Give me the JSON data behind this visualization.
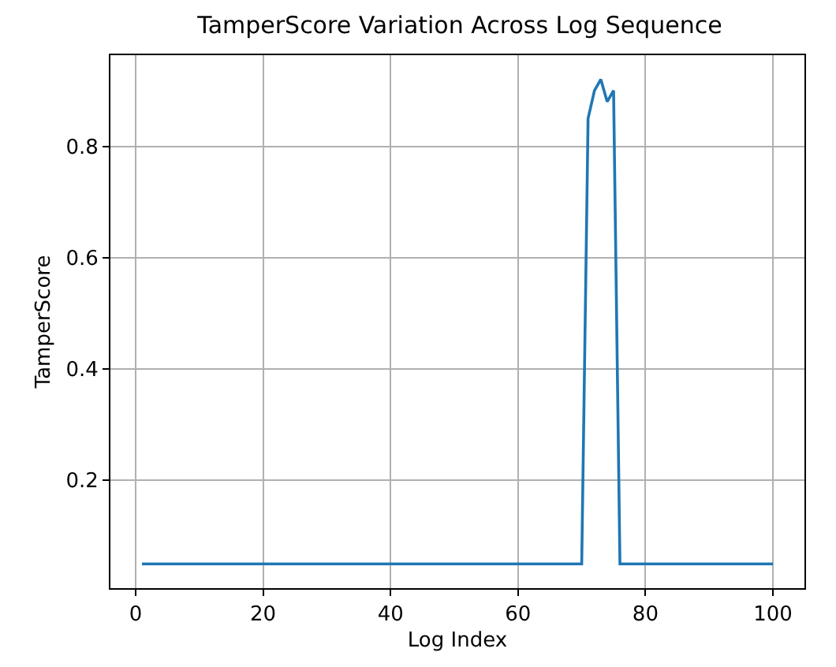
{
  "chart_data": {
    "type": "line",
    "title": "TamperScore Variation Across Log Sequence",
    "xlabel": "Log Index",
    "ylabel": "TamperScore",
    "x": [
      1,
      70,
      71,
      72,
      73,
      74,
      75,
      76,
      100
    ],
    "series": [
      {
        "color": "#1f77b4",
        "values": [
          0.05,
          0.05,
          0.85,
          0.9,
          0.92,
          0.88,
          0.9,
          0.05,
          0.05
        ]
      }
    ],
    "xlim": [
      -3.95,
      104.95
    ],
    "xticks": [
      0,
      20,
      40,
      60,
      80,
      100
    ],
    "ylim": [
      0.0065,
      0.9635
    ],
    "yticks": [
      0.2,
      0.4,
      0.6,
      0.8
    ],
    "grid": true,
    "marker": "none",
    "line_style": "solid"
  }
}
